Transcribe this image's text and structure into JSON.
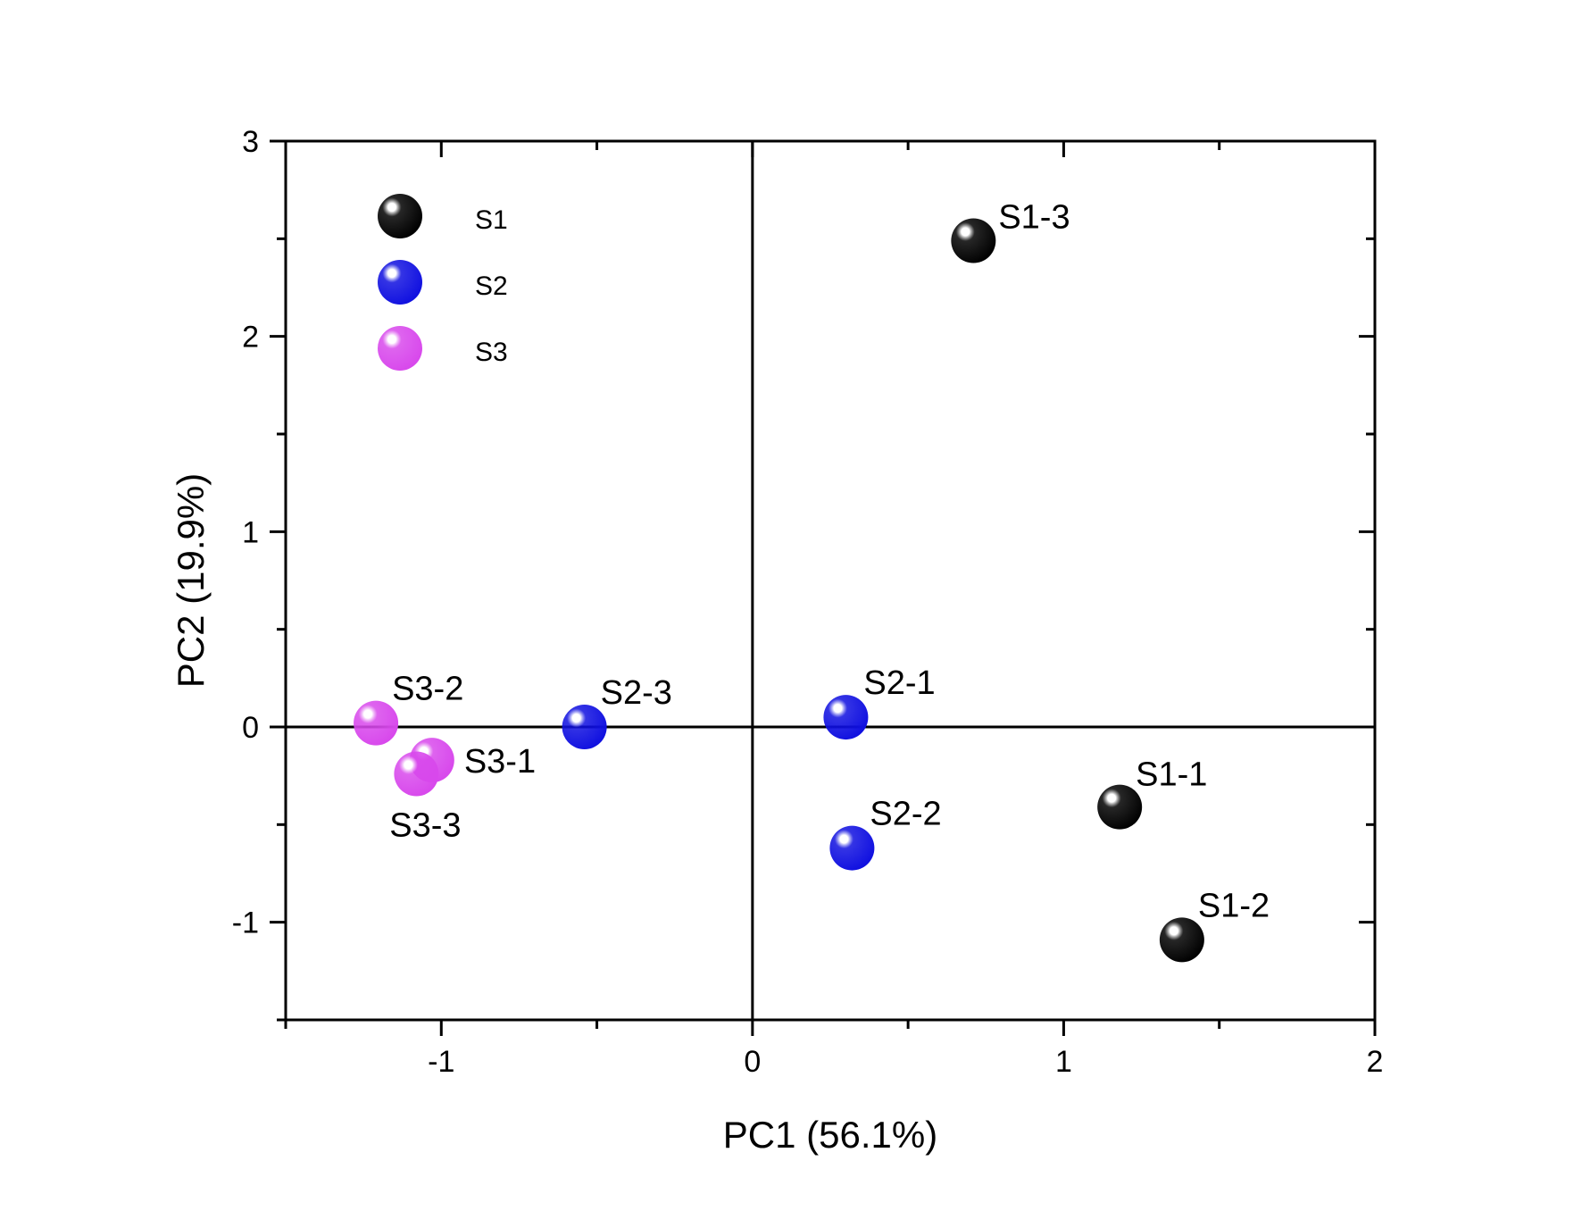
{
  "chart_data": {
    "type": "scatter",
    "title": "",
    "xlabel": "PC1 (56.1%)",
    "ylabel": "PC2 (19.9%)",
    "xlim": [
      -1.5,
      2
    ],
    "ylim": [
      -1.5,
      3
    ],
    "xticks": [
      -1,
      0,
      1,
      2
    ],
    "yticks": [
      -1,
      0,
      1,
      2,
      3
    ],
    "xtick_labels": [
      "-1",
      "0",
      "1",
      "2"
    ],
    "ytick_labels": [
      "-1",
      "0",
      "1",
      "2",
      "3"
    ],
    "grid": false,
    "zero_lines": true,
    "legend_position": "top-left",
    "series": [
      {
        "name": "S1",
        "color": "#000000",
        "points": [
          {
            "label": "S1-1",
            "x": 1.18,
            "y": -0.41
          },
          {
            "label": "S1-2",
            "x": 1.38,
            "y": -1.09
          },
          {
            "label": "S1-3",
            "x": 0.71,
            "y": 2.49
          }
        ]
      },
      {
        "name": "S2",
        "color": "#1010e0",
        "points": [
          {
            "label": "S2-1",
            "x": 0.3,
            "y": 0.05
          },
          {
            "label": "S2-2",
            "x": 0.32,
            "y": -0.62
          },
          {
            "label": "S2-3",
            "x": -0.54,
            "y": 0.0
          }
        ]
      },
      {
        "name": "S3",
        "color": "#d848ec",
        "points": [
          {
            "label": "S3-1",
            "x": -1.03,
            "y": -0.17
          },
          {
            "label": "S3-2",
            "x": -1.21,
            "y": 0.02
          },
          {
            "label": "S3-3",
            "x": -1.08,
            "y": -0.24
          }
        ]
      }
    ]
  }
}
